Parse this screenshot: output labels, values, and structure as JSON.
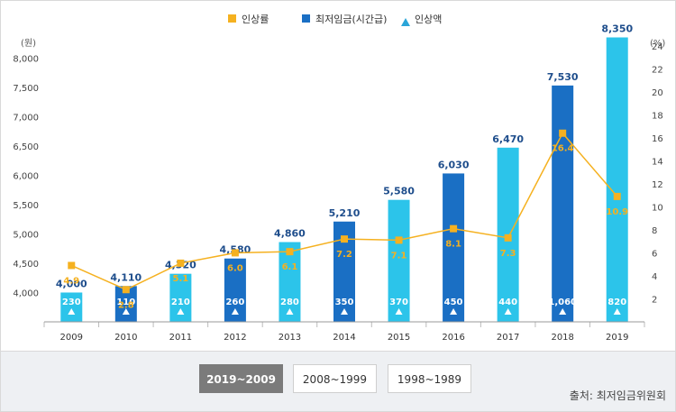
{
  "chart_data": {
    "type": "bar",
    "categories": [
      "2009",
      "2010",
      "2011",
      "2012",
      "2013",
      "2014",
      "2015",
      "2016",
      "2017",
      "2018",
      "2019"
    ],
    "left_axis": {
      "unit": "(원)",
      "ticks": [
        "4,000",
        "4,500",
        "5,000",
        "5,500",
        "6,000",
        "6,500",
        "7,000",
        "7,500",
        "8,000"
      ],
      "ylim": [
        3500,
        8250
      ]
    },
    "right_axis": {
      "unit": "(%)",
      "ticks": [
        "2",
        "4",
        "6",
        "8",
        "10",
        "12",
        "14",
        "16",
        "18",
        "20",
        "22",
        "24"
      ],
      "ylim": [
        0,
        25
      ]
    },
    "legend": [
      {
        "name": "인상률",
        "color": "#f5b120",
        "marker": "square"
      },
      {
        "name": "최저임금(시간급)",
        "color": "#1a6fc4",
        "marker": "square"
      },
      {
        "name": "인상액",
        "color": "#2aa5d8",
        "marker": "triangle"
      }
    ],
    "series": [
      {
        "name": "최저임금(시간급)",
        "type": "bar",
        "axis": "left",
        "values": [
          4000,
          4110,
          4320,
          4580,
          4860,
          5210,
          5580,
          6030,
          6470,
          7530,
          8350
        ],
        "labels": [
          "4,000",
          "4,110",
          "4,320",
          "4,580",
          "4,860",
          "5,210",
          "5,580",
          "6,030",
          "6,470",
          "7,530",
          "8,350"
        ],
        "colors": [
          "#2cc4ea",
          "#1a6fc4",
          "#2cc4ea",
          "#1a6fc4",
          "#2cc4ea",
          "#1a6fc4",
          "#2cc4ea",
          "#1a6fc4",
          "#2cc4ea",
          "#1a6fc4",
          "#2cc4ea"
        ]
      },
      {
        "name": "인상액",
        "type": "marker",
        "values": [
          230,
          110,
          210,
          260,
          280,
          350,
          370,
          450,
          440,
          1060,
          820
        ],
        "labels": [
          "230",
          "110",
          "210",
          "260",
          "280",
          "350",
          "370",
          "450",
          "440",
          "1,060",
          "820"
        ]
      },
      {
        "name": "인상률",
        "type": "line",
        "axis": "right",
        "color": "#f5b120",
        "values": [
          4.9,
          2.8,
          5.1,
          6.0,
          6.1,
          7.2,
          7.1,
          8.1,
          7.3,
          16.4,
          10.9
        ],
        "labels": [
          "4.9",
          "2.8",
          "5.1",
          "6.0",
          "6.1",
          "7.2",
          "7.1",
          "8.1",
          "7.3",
          "16.4",
          "10.9"
        ]
      }
    ]
  },
  "footer": {
    "buttons": [
      "2019~2009",
      "2008~1999",
      "1998~1989"
    ],
    "active_index": 0,
    "source": "출처: 최저임금위원회"
  }
}
